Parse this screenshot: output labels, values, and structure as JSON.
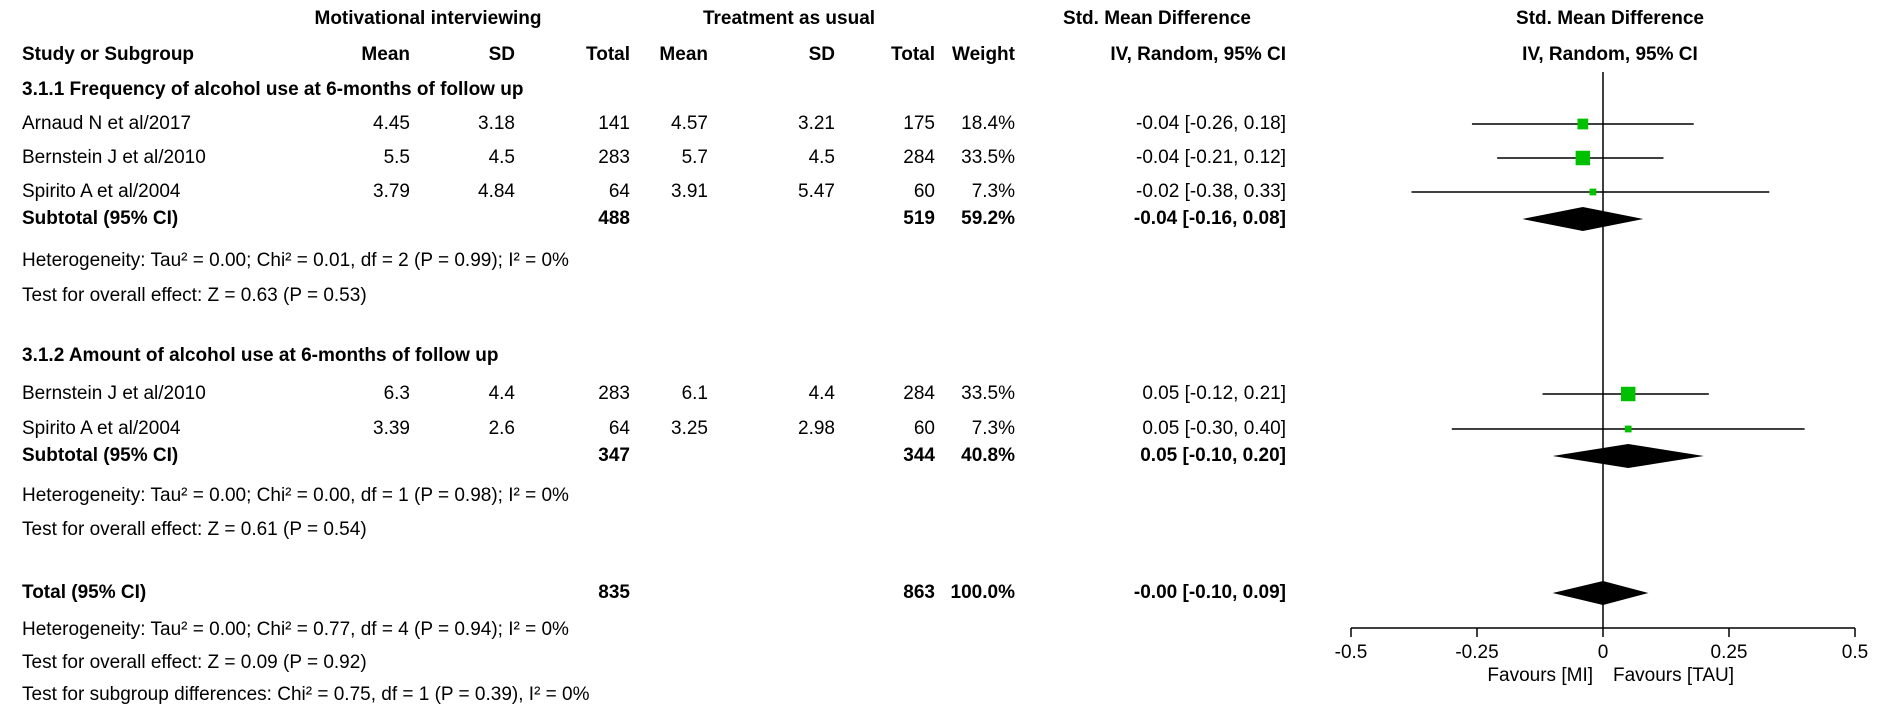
{
  "chart_data": {
    "type": "forest",
    "group_headers": {
      "experimental": "Motivational interviewing",
      "control": "Treatment as usual",
      "effect": "Std. Mean Difference",
      "plot": "Std. Mean Difference"
    },
    "columns": {
      "study": "Study or Subgroup",
      "mean": "Mean",
      "sd": "SD",
      "total": "Total",
      "weight": "Weight",
      "method": "IV, Random, 95% CI",
      "plot_method": "IV, Random, 95% CI"
    },
    "subgroups": [
      {
        "title": "3.1.1 Frequency of alcohol use at 6-months of follow up",
        "studies": [
          {
            "name": "Arnaud N et al/2017",
            "e_mean": "4.45",
            "e_sd": "3.18",
            "e_total": "141",
            "c_mean": "4.57",
            "c_sd": "3.21",
            "c_total": "175",
            "weight": "18.4%",
            "ci_text": "-0.04 [-0.26, 0.18]",
            "est": -0.04,
            "lo": -0.26,
            "hi": 0.18,
            "w": 18.4
          },
          {
            "name": "Bernstein J et al/2010",
            "e_mean": "5.5",
            "e_sd": "4.5",
            "e_total": "283",
            "c_mean": "5.7",
            "c_sd": "4.5",
            "c_total": "284",
            "weight": "33.5%",
            "ci_text": "-0.04 [-0.21, 0.12]",
            "est": -0.04,
            "lo": -0.21,
            "hi": 0.12,
            "w": 33.5
          },
          {
            "name": "Spirito A et al/2004",
            "e_mean": "3.79",
            "e_sd": "4.84",
            "e_total": "64",
            "c_mean": "3.91",
            "c_sd": "5.47",
            "c_total": "60",
            "weight": "7.3%",
            "ci_text": "-0.02 [-0.38, 0.33]",
            "est": -0.02,
            "lo": -0.38,
            "hi": 0.33,
            "w": 7.3
          }
        ],
        "subtotal": {
          "label": "Subtotal (95% CI)",
          "e_total": "488",
          "c_total": "519",
          "weight": "59.2%",
          "ci_text": "-0.04 [-0.16, 0.08]",
          "est": -0.04,
          "lo": -0.16,
          "hi": 0.08
        },
        "heterogeneity": "Heterogeneity: Tau² = 0.00; Chi² = 0.01, df = 2 (P = 0.99); I² = 0%",
        "overall_effect": "Test for overall effect: Z = 0.63 (P = 0.53)"
      },
      {
        "title": "3.1.2 Amount of alcohol use at 6-months of follow up",
        "studies": [
          {
            "name": "Bernstein J et al/2010",
            "e_mean": "6.3",
            "e_sd": "4.4",
            "e_total": "283",
            "c_mean": "6.1",
            "c_sd": "4.4",
            "c_total": "284",
            "weight": "33.5%",
            "ci_text": "0.05 [-0.12, 0.21]",
            "est": 0.05,
            "lo": -0.12,
            "hi": 0.21,
            "w": 33.5
          },
          {
            "name": "Spirito A et al/2004",
            "e_mean": "3.39",
            "e_sd": "2.6",
            "e_total": "64",
            "c_mean": "3.25",
            "c_sd": "2.98",
            "c_total": "60",
            "weight": "7.3%",
            "ci_text": "0.05 [-0.30, 0.40]",
            "est": 0.05,
            "lo": -0.3,
            "hi": 0.4,
            "w": 7.3
          }
        ],
        "subtotal": {
          "label": "Subtotal (95% CI)",
          "e_total": "347",
          "c_total": "344",
          "weight": "40.8%",
          "ci_text": "0.05 [-0.10, 0.20]",
          "est": 0.05,
          "lo": -0.1,
          "hi": 0.2
        },
        "heterogeneity": "Heterogeneity: Tau² = 0.00; Chi² = 0.00, df = 1 (P = 0.98); I² = 0%",
        "overall_effect": "Test for overall effect: Z = 0.61 (P = 0.54)"
      }
    ],
    "total": {
      "label": "Total (95% CI)",
      "e_total": "835",
      "c_total": "863",
      "weight": "100.0%",
      "ci_text": "-0.00 [-0.10, 0.09]",
      "est": -0.0,
      "lo": -0.1,
      "hi": 0.09
    },
    "total_heterogeneity": "Heterogeneity: Tau² = 0.00; Chi² = 0.77, df = 4 (P = 0.94); I² = 0%",
    "total_overall_effect": "Test for overall effect: Z = 0.09 (P = 0.92)",
    "subgroup_differences": "Test for subgroup differences: Chi² = 0.75, df = 1 (P = 0.39), I² = 0%",
    "x_axis": {
      "range": [
        -0.5,
        0.5
      ],
      "ticks": [
        -0.5,
        -0.25,
        0,
        0.25,
        0.5
      ],
      "tick_labels": [
        "-0.5",
        "-0.25",
        "0",
        "0.25",
        "0.5"
      ],
      "favours_left": "Favours [MI]",
      "favours_right": "Favours [TAU]"
    },
    "colors": {
      "study_marker": "#00c000",
      "diamond": "#000000",
      "line": "#000000"
    }
  }
}
